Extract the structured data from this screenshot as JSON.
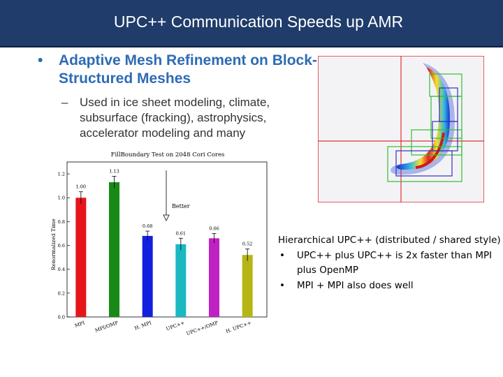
{
  "slide": {
    "title": "UPC++ Communication Speeds up AMR",
    "bullet": "Adaptive Mesh Refinement on Block-Structured Meshes",
    "sub_bullet": "Used in ice sheet modeling, climate, subsurface (fracking), astrophysics, accelerator modeling and many",
    "note_head": "Hierarchical UPC++ (distributed / shared style)",
    "note_items": [
      "UPC++ plus UPC++ is 2x faster than MPI plus OpenMP",
      "MPI + MPI also does well"
    ]
  },
  "chart_data": {
    "type": "bar",
    "title": "FillBoundary Test on 2048 Cori Cores",
    "ylabel": "Renormalized Time",
    "xlabel": "",
    "ylim": [
      0,
      1.3
    ],
    "yticks": [
      "0.0",
      "0.2",
      "0.4",
      "0.6",
      "0.8",
      "1.0",
      "1.2"
    ],
    "categories": [
      "MPI",
      "MPI/OMP",
      "H. MPI",
      "UPC++",
      "UPC++/OMP",
      "H. UPC++"
    ],
    "values": [
      1.0,
      1.13,
      0.68,
      0.61,
      0.66,
      0.52
    ],
    "value_labels": [
      "1.00",
      "1.13",
      "0.68",
      "0.61",
      "0.66",
      "0.52"
    ],
    "errors": [
      0.05,
      0.05,
      0.04,
      0.05,
      0.04,
      0.05
    ],
    "colors": [
      "#e8141c",
      "#178a16",
      "#1420e0",
      "#1bb8c2",
      "#c021c2",
      "#b6b516"
    ],
    "annotation": "Better",
    "grid": false,
    "legend": "none"
  }
}
